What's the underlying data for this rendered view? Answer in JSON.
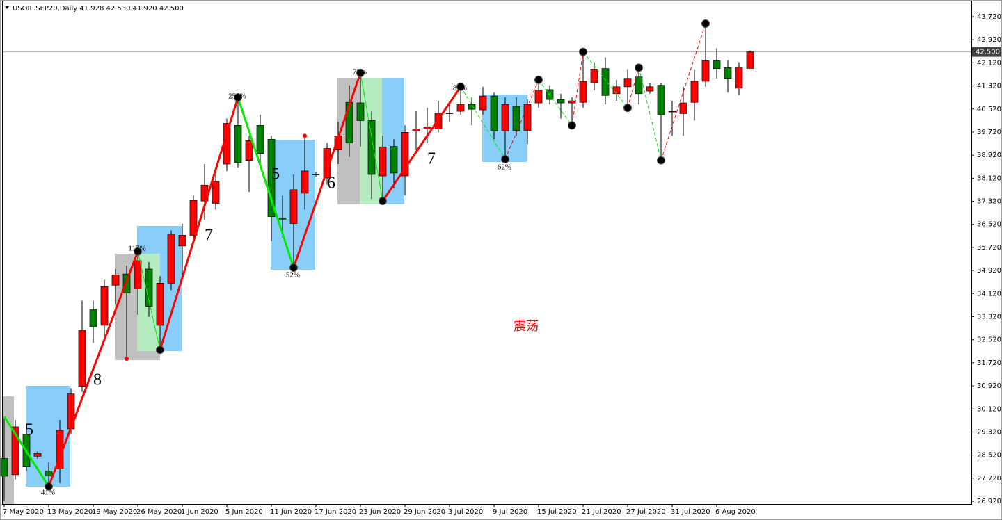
{
  "chart_data": {
    "type": "candlestick",
    "title": "USOIL.SEP20,Daily  41.928 42.530 41.920 42.500",
    "categories": [
      "7 May 2020",
      null,
      null,
      null,
      "13 May 2020",
      null,
      null,
      null,
      "19 May 2020",
      null,
      null,
      null,
      "26 May 2020",
      null,
      null,
      null,
      "1 Jun 2020",
      null,
      null,
      null,
      "5 Jun 2020",
      null,
      null,
      null,
      "11 Jun 2020",
      null,
      null,
      null,
      "17 Jun 2020",
      null,
      null,
      null,
      "23 Jun 2020",
      null,
      null,
      null,
      "29 Jun 2020",
      null,
      null,
      null,
      "3 Jul 2020",
      null,
      null,
      null,
      "9 Jul 2020",
      null,
      null,
      null,
      "15 Jul 2020",
      null,
      null,
      null,
      "21 Jul 2020",
      null,
      null,
      null,
      "27 Jul 2020",
      null,
      null,
      null,
      "31 Jul 2020",
      null,
      null,
      null,
      "6 Aug 2020",
      null,
      null,
      null
    ],
    "open": [
      28.4,
      27.84,
      29.25,
      28.48,
      27.97,
      28.04,
      29.43,
      30.91,
      33.56,
      33.02,
      34.41,
      34.8,
      34.29,
      34.97,
      33.02,
      34.48,
      35.77,
      36.14,
      37.33,
      37.25,
      38.61,
      39.95,
      38.74,
      39.95,
      39.47,
      36.74,
      36.55,
      37.6,
      38.26,
      38.13,
      39.1,
      40.75,
      40.73,
      40.12,
      38.2,
      39.22,
      38.2,
      39.76,
      39.83,
      39.83,
      40.36,
      40.44,
      40.68,
      40.49,
      40.97,
      39.76,
      40.61,
      39.78,
      40.73,
      41.19,
      40.85,
      40.73,
      40.75,
      41.43,
      41.92,
      41.05,
      41.29,
      41.63,
      41.14,
      41.34,
      40.42,
      40.36,
      40.75,
      41.48,
      42.19,
      41.95,
      41.24,
      41.928
    ],
    "high": [
      29.86,
      29.74,
      29.5,
      28.65,
      28.28,
      29.74,
      30.84,
      33.87,
      33.87,
      34.6,
      34.97,
      35.09,
      35.58,
      35.21,
      34.72,
      36.31,
      36.55,
      37.52,
      38.61,
      38.25,
      40.19,
      40.92,
      39.59,
      40.32,
      39.59,
      37.52,
      38.25,
      39.59,
      38.33,
      39.34,
      40.07,
      41.34,
      41.77,
      40.44,
      39.59,
      39.47,
      39.95,
      40.44,
      40.56,
      40.8,
      40.8,
      41.29,
      40.92,
      41.29,
      41.09,
      40.92,
      40.92,
      40.85,
      41.53,
      41.34,
      41.05,
      40.92,
      42.5,
      42.14,
      42.31,
      41.53,
      41.9,
      41.95,
      41.41,
      41.41,
      40.8,
      41.29,
      41.9,
      43.48,
      42.63,
      42.21,
      42.14,
      42.53
    ],
    "low": [
      26.95,
      27.68,
      27.97,
      28.4,
      27.43,
      27.55,
      29.25,
      30.71,
      32.41,
      32.66,
      33.75,
      31.86,
      33.39,
      33.32,
      32.17,
      34.24,
      34.72,
      35.94,
      36.67,
      37.03,
      38.37,
      38.49,
      37.64,
      38.61,
      35.94,
      36.07,
      35.02,
      37.03,
      38.18,
      37.89,
      38.61,
      38.86,
      39.22,
      37.4,
      37.33,
      37.76,
      37.52,
      39.1,
      39.34,
      39.71,
      40.07,
      40.32,
      39.95,
      40.32,
      39.47,
      38.78,
      39.59,
      39.3,
      40.56,
      40.68,
      40.19,
      39.95,
      40.56,
      41.17,
      40.68,
      40.8,
      40.56,
      40.68,
      41.05,
      38.74,
      39.59,
      39.59,
      40.12,
      41.29,
      41.58,
      41.09,
      41.0,
      41.92
    ],
    "close": [
      27.79,
      29.5,
      28.11,
      28.58,
      27.8,
      29.38,
      30.64,
      32.85,
      32.97,
      34.36,
      34.77,
      34.14,
      35.26,
      33.68,
      34.48,
      36.18,
      36.14,
      37.35,
      37.88,
      38.01,
      40.02,
      38.66,
      39.42,
      38.98,
      36.79,
      36.7,
      37.72,
      38.37,
      38.24,
      39.15,
      39.59,
      39.34,
      40.12,
      38.25,
      39.2,
      38.3,
      39.71,
      39.83,
      39.9,
      40.37,
      40.38,
      40.68,
      40.51,
      40.97,
      39.76,
      40.68,
      39.78,
      40.68,
      41.17,
      40.85,
      40.73,
      40.8,
      41.48,
      41.9,
      40.99,
      41.29,
      41.58,
      41.05,
      41.29,
      40.32,
      40.44,
      40.73,
      41.48,
      42.19,
      41.92,
      41.58,
      41.97,
      42.5
    ],
    "up_color": "#ff0000",
    "down_color": "#008000",
    "ylim": [
      26.8,
      44.25
    ],
    "yticks": [
      {
        "value": 26.92,
        "label": "26.920"
      },
      {
        "value": 27.72,
        "label": "27.720"
      },
      {
        "value": 28.52,
        "label": "28.520"
      },
      {
        "value": 29.32,
        "label": "29.320"
      },
      {
        "value": 30.12,
        "label": "30.120"
      },
      {
        "value": 30.92,
        "label": "30.920"
      },
      {
        "value": 31.72,
        "label": "31.720"
      },
      {
        "value": 32.52,
        "label": "32.520"
      },
      {
        "value": 33.32,
        "label": "33.320"
      },
      {
        "value": 34.12,
        "label": "34.120"
      },
      {
        "value": 34.92,
        "label": "34.920"
      },
      {
        "value": 35.72,
        "label": "35.720"
      },
      {
        "value": 36.52,
        "label": "36.520"
      },
      {
        "value": 37.32,
        "label": "37.320"
      },
      {
        "value": 38.12,
        "label": "38.120"
      },
      {
        "value": 38.92,
        "label": "38.920"
      },
      {
        "value": 39.72,
        "label": "39.720"
      },
      {
        "value": 40.52,
        "label": "40.520"
      },
      {
        "value": 41.32,
        "label": "41.320"
      },
      {
        "value": 42.12,
        "label": "42.120"
      },
      {
        "value": 42.92,
        "label": "42.920"
      },
      {
        "value": 43.72,
        "label": "43.720"
      }
    ],
    "last_price": {
      "value": 42.5,
      "label": "42.500"
    },
    "annotations": [
      "5",
      "8",
      "7",
      "5",
      "6",
      "7",
      "41%",
      "117%",
      "256%",
      "52%",
      "75%",
      "87%",
      "62%",
      "震荡"
    ]
  }
}
